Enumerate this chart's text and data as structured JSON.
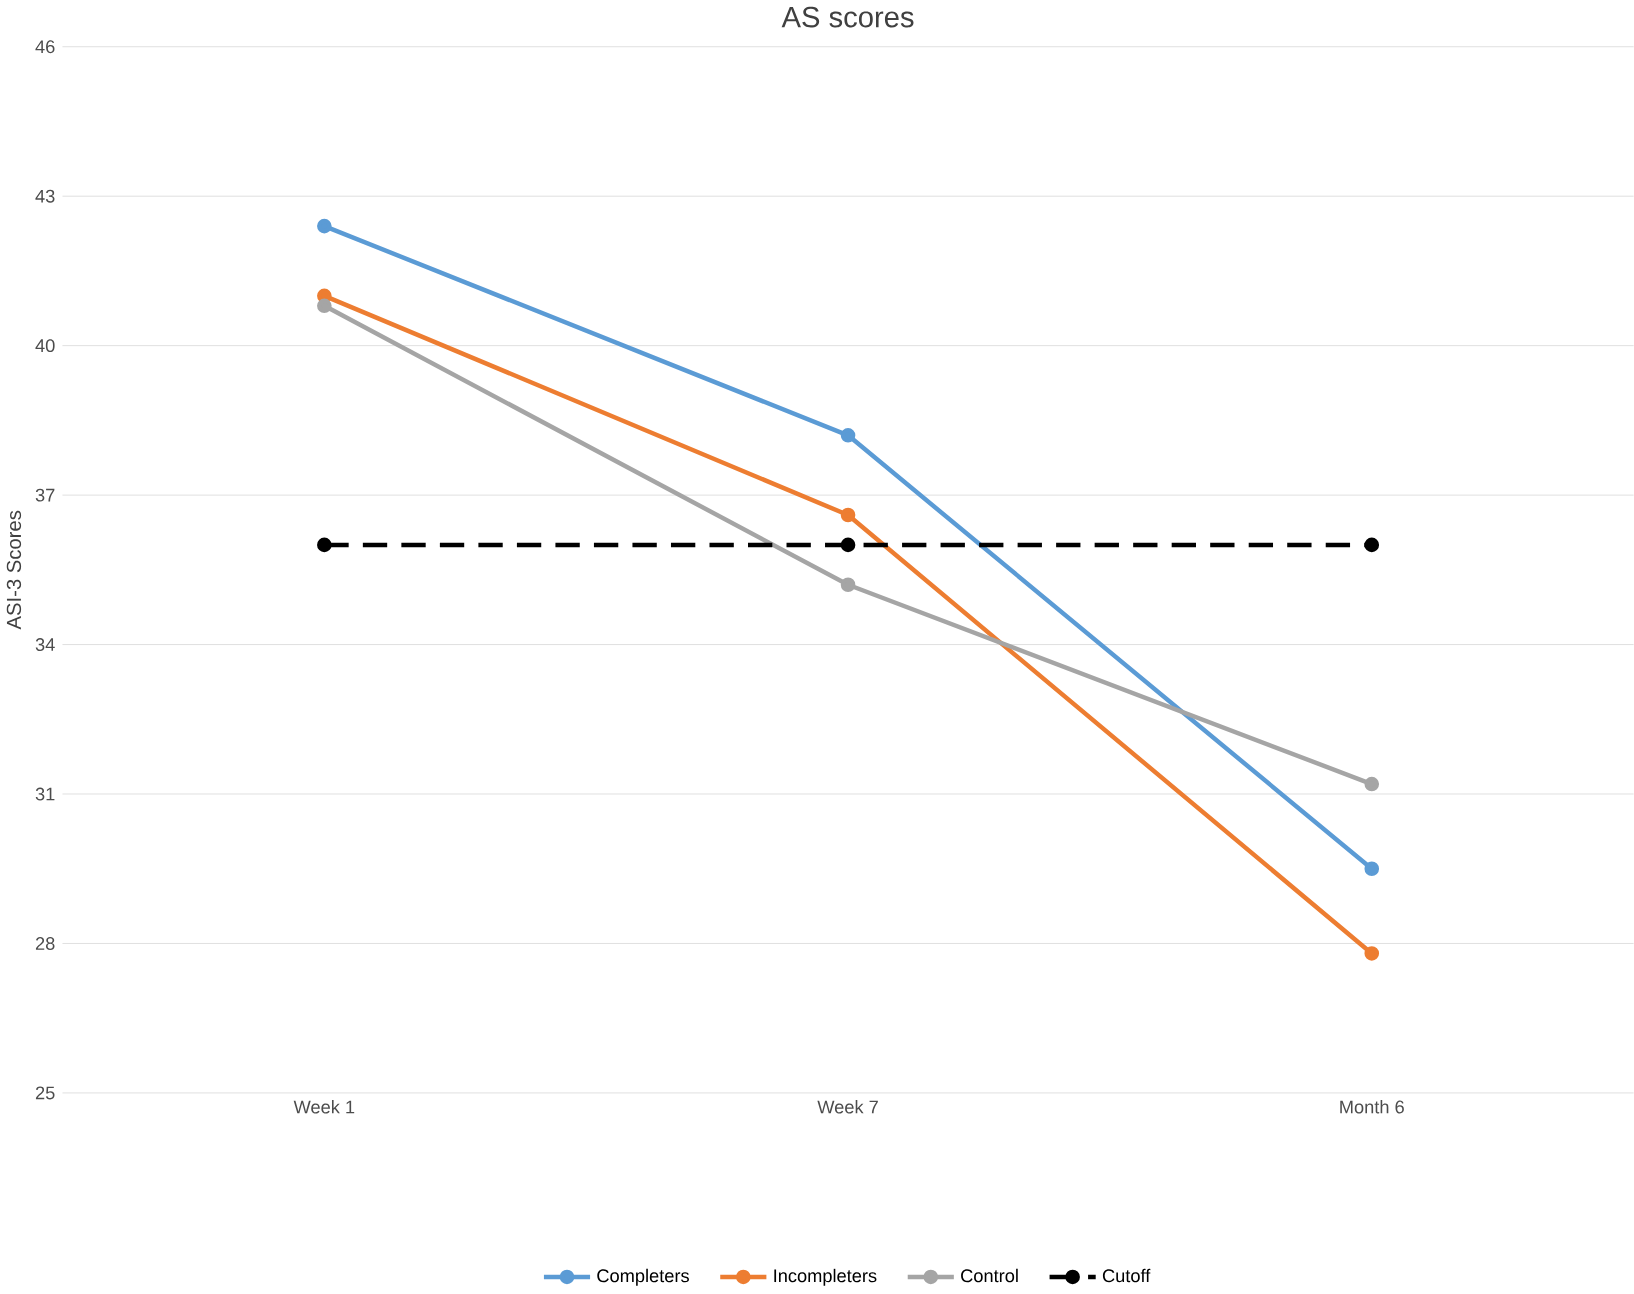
{
  "chart_data": {
    "type": "line",
    "title": "AS scores",
    "ylabel": "ASI-3 Scores",
    "categories": [
      "Week 1",
      "Week 7",
      "Month 6"
    ],
    "series": [
      {
        "name": "Completers",
        "color": "#5b9bd5",
        "values": [
          42.4,
          38.2,
          29.5
        ]
      },
      {
        "name": "Incompleters",
        "color": "#ed7d31",
        "values": [
          41.0,
          36.6,
          27.8
        ]
      },
      {
        "name": "Control",
        "color": "#a5a5a5",
        "values": [
          40.8,
          35.2,
          31.2
        ]
      },
      {
        "name": "Cutoff",
        "color": "#000000",
        "values": [
          36,
          36,
          36
        ],
        "line_style": "dashed"
      }
    ],
    "ylim": [
      25,
      46
    ],
    "yticks": [
      25,
      28,
      31,
      34,
      37,
      40,
      43,
      46
    ],
    "grid": "y",
    "legend": "bottom",
    "marker": "circle",
    "line_style": "solid"
  }
}
